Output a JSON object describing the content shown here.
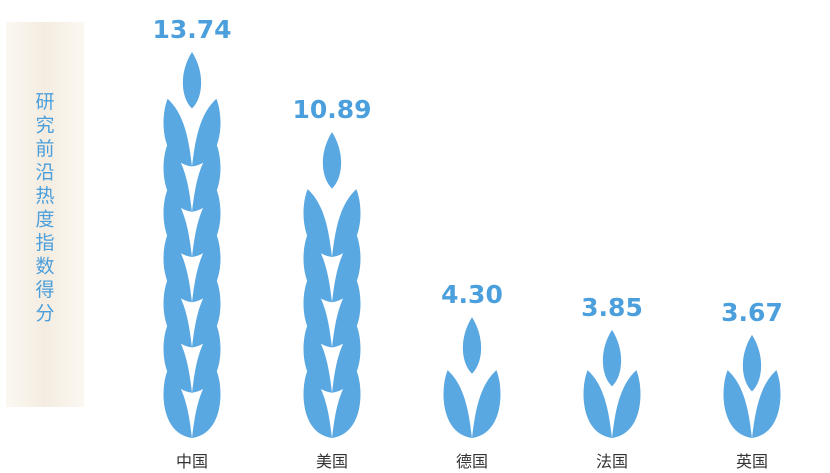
{
  "chart_data": {
    "type": "pictogram",
    "y_label": "研究前沿热度指数得分",
    "categories": [
      "中国",
      "美国",
      "德国",
      "法国",
      "英国"
    ],
    "values": [
      13.74,
      10.89,
      4.3,
      3.85,
      3.67
    ],
    "value_labels": [
      "13.74",
      "10.89",
      "4.30",
      "3.85",
      "3.67"
    ],
    "color": "#5aa8e2"
  }
}
